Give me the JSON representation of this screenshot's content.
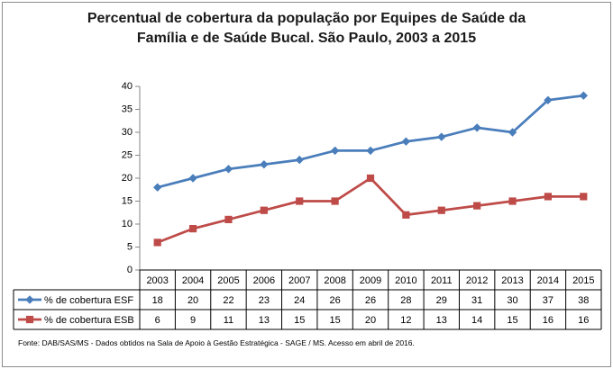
{
  "chart_data": {
    "type": "line",
    "title_lines": [
      "Percentual de cobertura da população por Equipes de Saúde da",
      "Família e de Saúde Bucal. São Paulo, 2003 a 2015"
    ],
    "categories": [
      "2003",
      "2004",
      "2005",
      "2006",
      "2007",
      "2008",
      "2009",
      "2010",
      "2011",
      "2012",
      "2013",
      "2014",
      "2015"
    ],
    "series": [
      {
        "name": "% de cobertura ESF",
        "color": "#4a7ebb",
        "marker": "diamond",
        "values": [
          18,
          20,
          22,
          23,
          24,
          26,
          26,
          28,
          29,
          31,
          30,
          37,
          38
        ]
      },
      {
        "name": "% de cobertura ESB",
        "color": "#be4b48",
        "marker": "square",
        "values": [
          6,
          9,
          11,
          13,
          15,
          15,
          20,
          12,
          13,
          14,
          15,
          16,
          16
        ]
      }
    ],
    "ylim": [
      0,
      40
    ],
    "yticks": [
      "0",
      "5",
      "10",
      "15",
      "20",
      "25",
      "30",
      "35",
      "40"
    ],
    "grid": false,
    "legend": "data-table rows",
    "source": "Fonte:  DAB/SAS/MS - Dados obtidos na Sala de Apoio à Gestão Estratégica - SAGE / MS. Acesso em abril  de 2016."
  }
}
